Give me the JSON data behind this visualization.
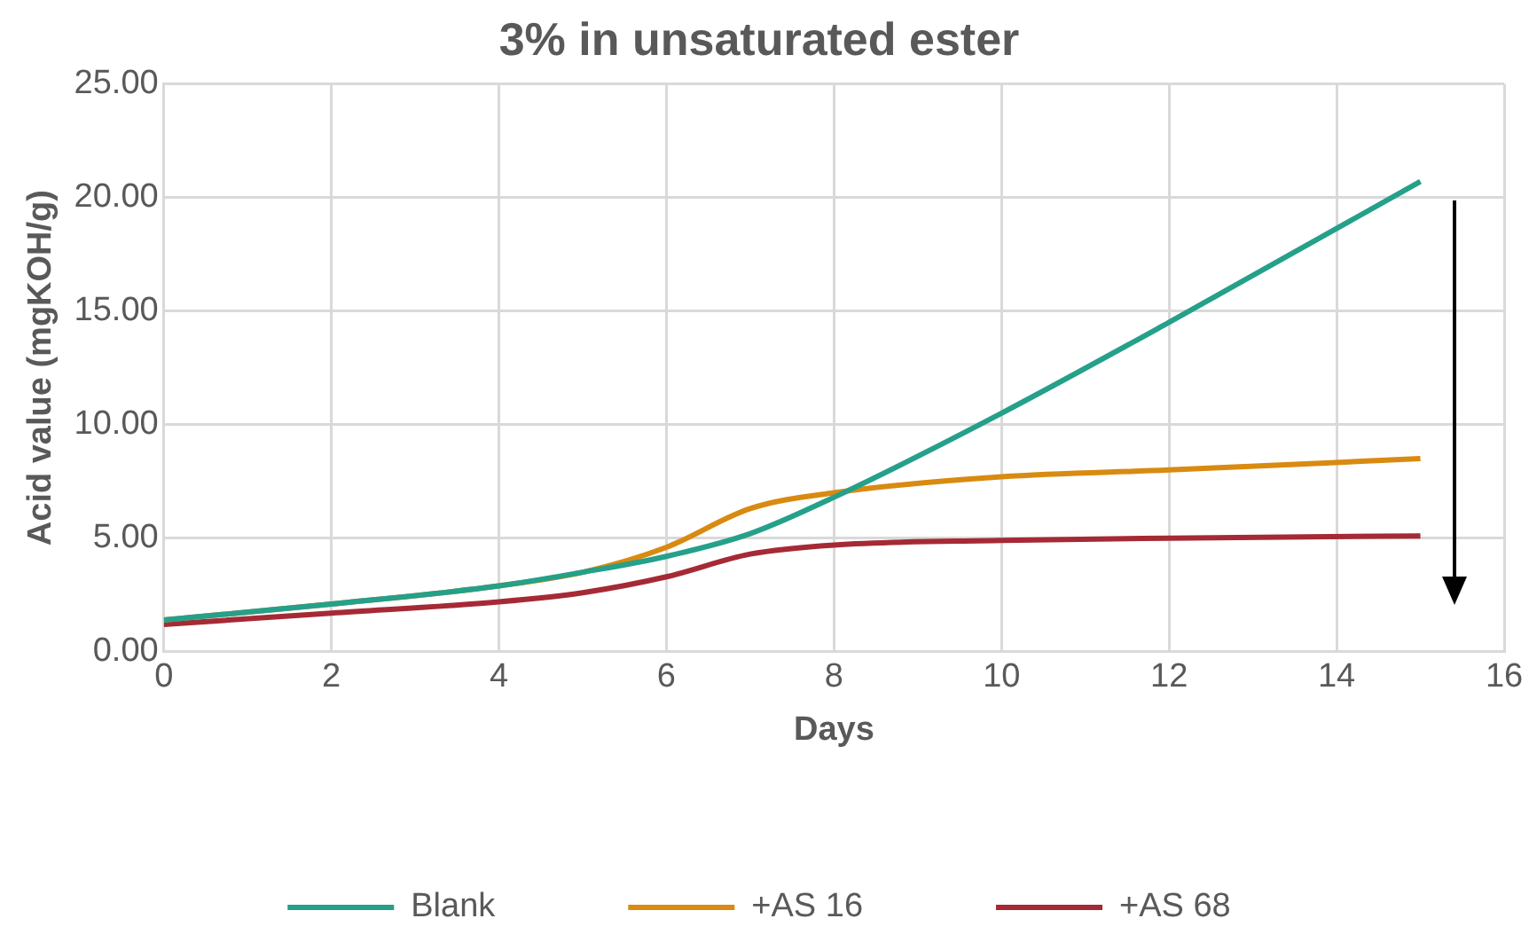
{
  "chart_data": {
    "type": "line",
    "title": "3% in unsaturated ester",
    "xlabel": "Days",
    "ylabel": "Acid value (mgKOH/g)",
    "x": [
      0,
      2,
      4,
      5,
      6,
      7,
      8,
      10,
      12,
      15
    ],
    "series": [
      {
        "name": "Blank",
        "color": "#25a08a",
        "values": [
          1.4,
          2.1,
          2.9,
          3.5,
          4.2,
          5.2,
          6.8,
          10.5,
          14.5,
          20.7
        ]
      },
      {
        "name": "+AS 16",
        "color": "#d98a10",
        "values": [
          1.4,
          2.1,
          2.9,
          3.5,
          4.6,
          6.3,
          7.0,
          7.7,
          8.0,
          8.5
        ]
      },
      {
        "name": "+AS 68",
        "color": "#a52a35",
        "values": [
          1.2,
          1.7,
          2.2,
          2.6,
          3.3,
          4.3,
          4.7,
          4.9,
          5.0,
          5.1
        ]
      }
    ],
    "xlim": [
      0,
      16
    ],
    "xticks": [
      0,
      2,
      4,
      6,
      8,
      10,
      12,
      14,
      16
    ],
    "ylim": [
      0,
      25
    ],
    "yticks": [
      {
        "value": 0,
        "label": "0.00"
      },
      {
        "value": 5,
        "label": "5.00"
      },
      {
        "value": 10,
        "label": "10.00"
      },
      {
        "value": 15,
        "label": "15.00"
      },
      {
        "value": 20,
        "label": "20.00"
      },
      {
        "value": 25,
        "label": "25.00"
      }
    ],
    "grid": true,
    "legend": "bottom",
    "marker": "none",
    "line_style": "solid"
  }
}
